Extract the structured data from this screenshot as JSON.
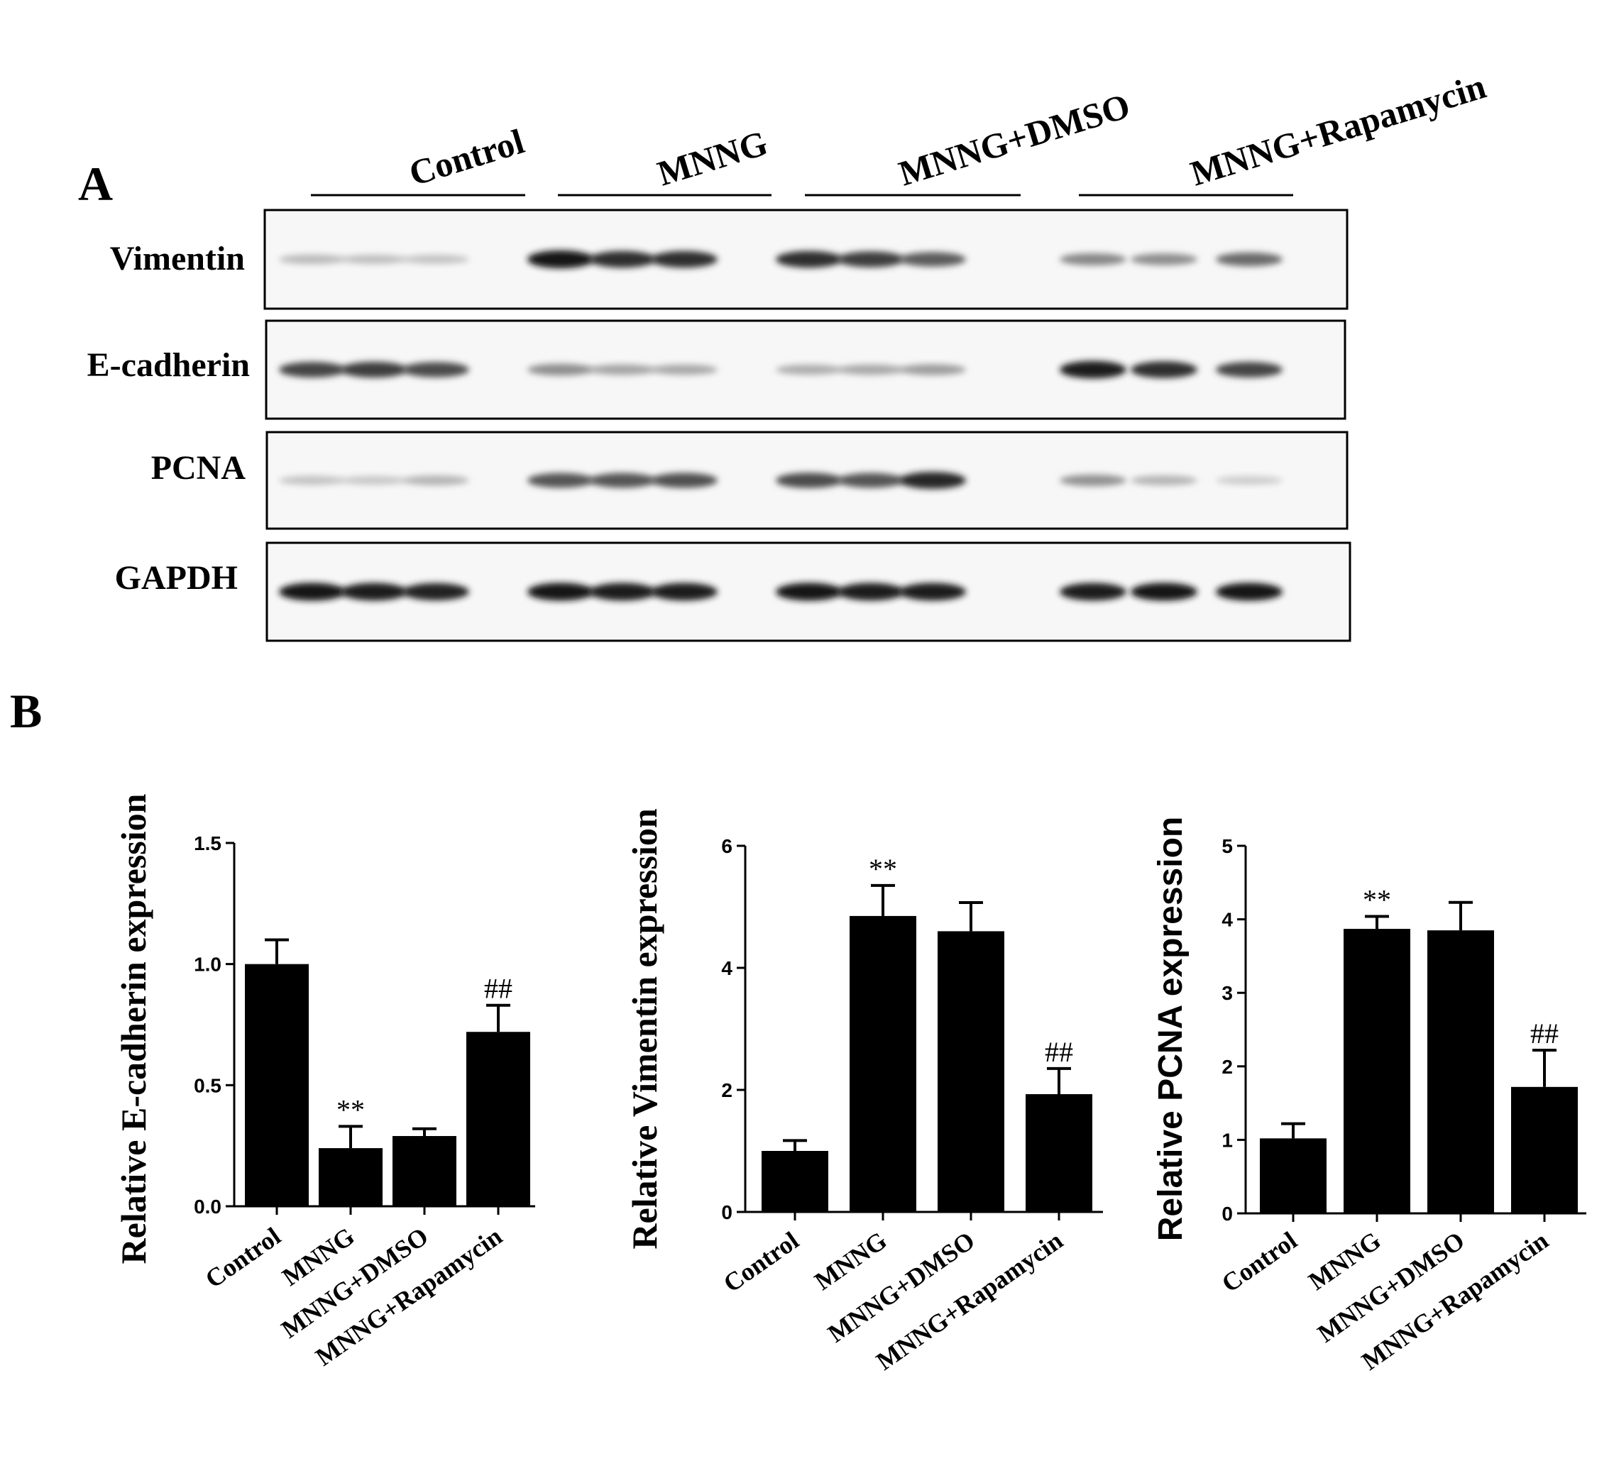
{
  "panel_a": {
    "label": "A",
    "groups": [
      "Control",
      "MNNG",
      "MNNG+DMSO",
      "MNNG+Rapamycin"
    ],
    "blots": [
      {
        "name": "Vimentin",
        "intensities": [
          0.22,
          0.2,
          0.18,
          0.95,
          0.85,
          0.85,
          0.85,
          0.78,
          0.65,
          0.45,
          0.42,
          0.58
        ]
      },
      {
        "name": "E-cadherin",
        "intensities": [
          0.75,
          0.78,
          0.72,
          0.42,
          0.32,
          0.3,
          0.28,
          0.3,
          0.35,
          0.92,
          0.85,
          0.75
        ]
      },
      {
        "name": "PCNA",
        "intensities": [
          0.18,
          0.16,
          0.25,
          0.68,
          0.68,
          0.7,
          0.72,
          0.68,
          0.88,
          0.4,
          0.25,
          0.14
        ]
      },
      {
        "name": "GAPDH",
        "intensities": [
          0.95,
          0.93,
          0.9,
          0.95,
          0.93,
          0.93,
          0.95,
          0.93,
          0.93,
          0.93,
          0.95,
          0.95
        ]
      }
    ]
  },
  "panel_b": {
    "label": "B"
  },
  "chart_data": [
    {
      "type": "bar",
      "categories": [
        "Control",
        "MNNG",
        "MNNG+DMSO",
        "MNNG+Rapamycin"
      ],
      "values": [
        1.0,
        0.24,
        0.29,
        0.72
      ],
      "errors": [
        0.1,
        0.09,
        0.03,
        0.11
      ],
      "annotations": [
        "",
        "**",
        "",
        "##"
      ],
      "ylabel": "Relative E-cadherin expression",
      "ylim": [
        0,
        1.5
      ],
      "yticks": [
        "0.0",
        "0.5",
        "1.0",
        "1.5"
      ],
      "color": "#000000"
    },
    {
      "type": "bar",
      "categories": [
        "Control",
        "MNNG",
        "MNNG+DMSO",
        "MNNG+Rapamycin"
      ],
      "values": [
        1.0,
        4.85,
        4.6,
        1.93
      ],
      "errors": [
        0.17,
        0.5,
        0.47,
        0.42
      ],
      "annotations": [
        "",
        "**",
        "",
        "##"
      ],
      "ylabel": "Relative Vimentin expression",
      "ylim": [
        0,
        6
      ],
      "yticks": [
        "0",
        "2",
        "4",
        "6"
      ],
      "color": "#000000"
    },
    {
      "type": "bar",
      "categories": [
        "Control",
        "MNNG",
        "MNNG+DMSO",
        "MNNG+Rapamycin"
      ],
      "values": [
        1.02,
        3.87,
        3.85,
        1.72
      ],
      "errors": [
        0.2,
        0.17,
        0.38,
        0.5
      ],
      "annotations": [
        "",
        "**",
        "",
        "##"
      ],
      "ylabel": "Relative PCNA expression",
      "ylim": [
        0,
        5
      ],
      "yticks": [
        "0",
        "1",
        "2",
        "3",
        "4",
        "5"
      ],
      "color": "#000000"
    }
  ]
}
